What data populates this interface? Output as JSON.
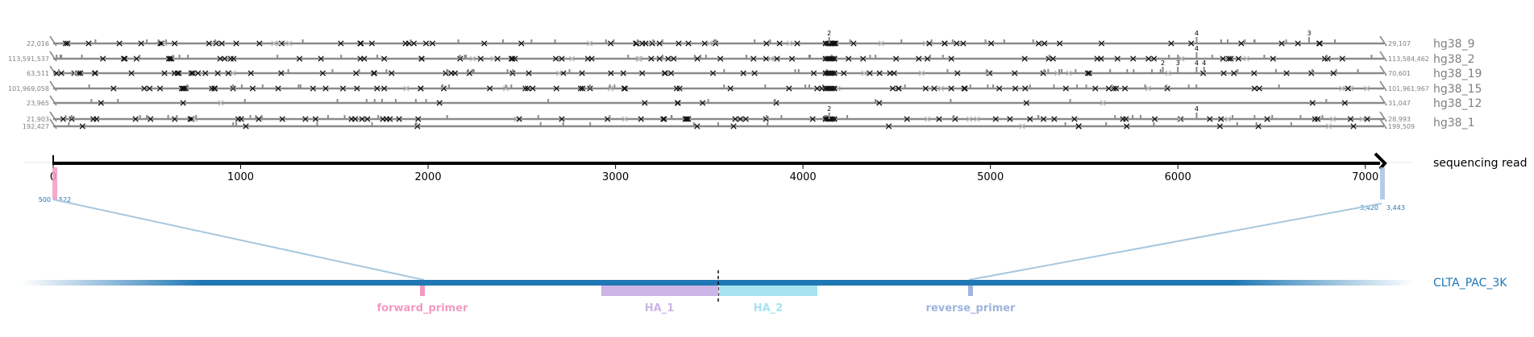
{
  "alignments": [
    {
      "label": "hg38_9",
      "rows": [
        {
          "left": "22,016",
          "right": "29,107"
        }
      ]
    },
    {
      "label": "hg38_2",
      "rows": [
        {
          "left": "113,591,537",
          "right": "113,584,462"
        }
      ]
    },
    {
      "label": "hg38_19",
      "rows": [
        {
          "left": "63,511",
          "right": "70,601"
        }
      ]
    },
    {
      "label": "hg38_15",
      "rows": [
        {
          "left": "101,969,058",
          "right": "101,961,967"
        }
      ]
    },
    {
      "label": "hg38_12",
      "rows": [
        {
          "left": "23,965",
          "right": "31,047"
        }
      ]
    },
    {
      "label": "hg38_1",
      "rows": [
        {
          "left": "21,903",
          "right": "28,993"
        },
        {
          "left": "192,427",
          "right": "199,509"
        }
      ]
    }
  ],
  "insertion_counts": [
    {
      "text": "2",
      "row": 0,
      "pos": 4140
    },
    {
      "text": "4",
      "row": 0,
      "pos": 6100
    },
    {
      "text": "3",
      "row": 0,
      "pos": 6700
    },
    {
      "text": "4",
      "row": 1,
      "pos": 6100
    },
    {
      "text": "4",
      "row": 2,
      "pos": 6100
    },
    {
      "text": "2",
      "row": 2,
      "pos": 5920
    },
    {
      "text": "3",
      "row": 2,
      "pos": 6000
    },
    {
      "text": "4",
      "row": 2,
      "pos": 6140
    },
    {
      "text": "2",
      "row": 5,
      "pos": 4140
    },
    {
      "text": "4",
      "row": 5,
      "pos": 6100
    }
  ],
  "read": {
    "label": "sequencing read",
    "length": 7100,
    "ticks": [
      "0",
      "1000",
      "2000",
      "3000",
      "4000",
      "5000",
      "6000",
      "7000"
    ]
  },
  "read_marks": [
    {
      "start_label": "500",
      "end_label": "522",
      "pos": 0,
      "color": "#f49ac1"
    },
    {
      "start_label": "3,420",
      "end_label": "3,443",
      "pos": 7100,
      "color": "#a8c3e2"
    }
  ],
  "reference": {
    "label": "CLTA_PAC_3K",
    "color": "#1f77b4"
  },
  "features": [
    {
      "name": "forward_primer",
      "color": "#f49ac1"
    },
    {
      "name": "HA_1",
      "color": "#cbb5e6"
    },
    {
      "name": "HA_2",
      "color": "#a6e3ef"
    },
    {
      "name": "reverse_primer",
      "color": "#9fb5dd"
    }
  ],
  "colors": {
    "alignment_line": "#8a8a8a",
    "mismatch": "#111111",
    "mismatch_light": "#b8b8b8",
    "label_gray": "#808080",
    "connector": "#a7c7de",
    "text": "#000000"
  }
}
